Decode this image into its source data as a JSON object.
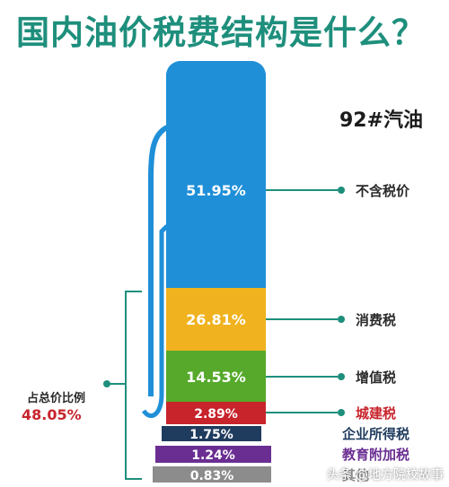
{
  "title": "国内油价税费结构是什么？",
  "fuel_type": "92#汽油",
  "total_tax": {
    "label": "占总价比例",
    "value": "48.05%"
  },
  "watermark": "头条 @地方院校故事",
  "chart_data": {
    "type": "bar",
    "orientation": "stacked",
    "title": "国内油价税费结构是什么？",
    "subtitle": "92#汽油",
    "categories": [
      "不含税价",
      "消费税",
      "增值税",
      "城建税",
      "企业所得税",
      "教育附加税",
      "其他"
    ],
    "values": [
      51.95,
      26.81,
      14.53,
      2.89,
      1.75,
      1.24,
      0.83
    ],
    "value_labels": [
      "51.95%",
      "26.81%",
      "14.53%",
      "2.89%",
      "1.75%",
      "1.24%",
      "0.83%"
    ],
    "colors": [
      "#1f8fd8",
      "#f0b21e",
      "#56a92b",
      "#c8242c",
      "#1f3b5e",
      "#6a2e92",
      "#8c8c8c"
    ],
    "label_colors": [
      "#2a2a2a",
      "#2a2a2a",
      "#2a2a2a",
      "#c8242c",
      "#1f3b5e",
      "#6a2e92",
      "#8c8c8c"
    ],
    "annotation": {
      "label": "占总价比例",
      "value": "48.05%"
    }
  },
  "colors": {
    "title": "#1e8f7c",
    "connector": "#1e8f7c",
    "pump_window": "#ffffff",
    "pump_hose": "#1f8fd8"
  }
}
